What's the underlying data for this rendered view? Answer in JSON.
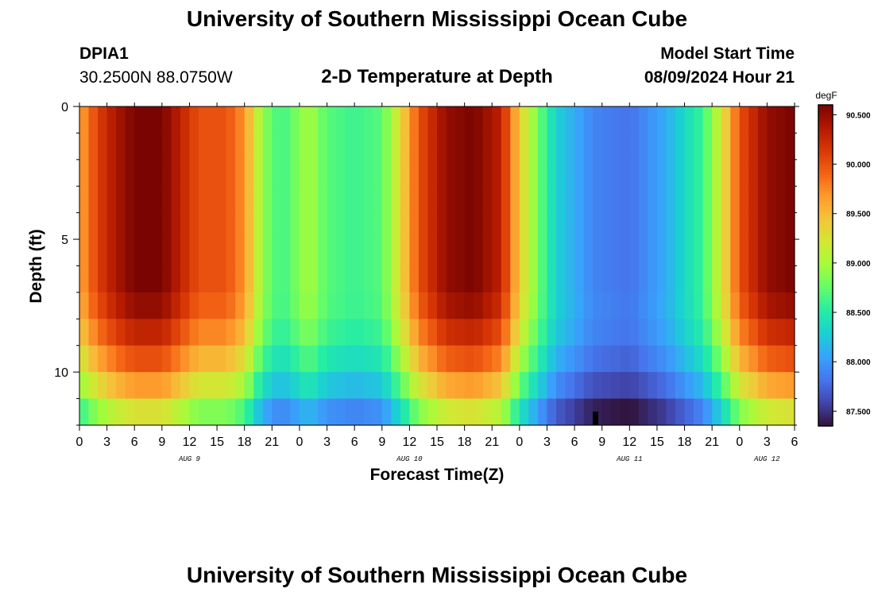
{
  "header": {
    "title": "University of Southern Mississippi Ocean Cube",
    "station_id": "DPIA1",
    "station_coords": "30.2500N  88.0750W",
    "chart_title": "2-D Temperature at Depth",
    "model_start_label": "Model Start Time",
    "model_start_time": "08/09/2024 Hour 21"
  },
  "footer": {
    "title": "University of Southern Mississippi Ocean Cube"
  },
  "chart_data": {
    "type": "heatmap",
    "title": "2-D Temperature at Depth",
    "xlabel": "Forecast Time(Z)",
    "ylabel": "Depth (ft)",
    "x_tick_labels": [
      "0",
      "3",
      "6",
      "9",
      "12",
      "15",
      "18",
      "21",
      "0",
      "3",
      "6",
      "9",
      "12",
      "15",
      "18",
      "21",
      "0",
      "3",
      "6",
      "9",
      "12",
      "15",
      "18",
      "21",
      "0",
      "3",
      "6"
    ],
    "date_labels": [
      {
        "text": "AUG 9",
        "hour": 12
      },
      {
        "text": "AUG 10",
        "hour": 36
      },
      {
        "text": "AUG 11",
        "hour": 60
      },
      {
        "text": "AUG 12",
        "hour": 75
      }
    ],
    "y_ticks": [
      0,
      5,
      10
    ],
    "xlim": [
      0,
      78
    ],
    "ylim": [
      0,
      12
    ],
    "colorbar": {
      "unit": "degF",
      "ticks": [
        "90.500",
        "90.000",
        "89.500",
        "89.000",
        "88.500",
        "88.000",
        "87.500"
      ],
      "range": [
        87.35,
        90.6
      ],
      "colormap": [
        "#30123b",
        "#4145ab",
        "#4675ed",
        "#39a2fc",
        "#1bcfd4",
        "#24eca6",
        "#61fc6c",
        "#a4fc3b",
        "#d1e834",
        "#f3c63a",
        "#fe9b2d",
        "#f36315",
        "#d93806",
        "#b11901",
        "#7a0402"
      ]
    },
    "depth_levels_ft": [
      0.5,
      1.5,
      2.5,
      3.5,
      4.5,
      5.5,
      6.5,
      7.5,
      8.5,
      9.5,
      10.5,
      11.5
    ],
    "surface_temp_by_hour": [
      {
        "hour": 0,
        "temp": 89.6
      },
      {
        "hour": 2,
        "temp": 90.1
      },
      {
        "hour": 4,
        "temp": 90.4
      },
      {
        "hour": 6,
        "temp": 90.6
      },
      {
        "hour": 9,
        "temp": 90.6
      },
      {
        "hour": 11,
        "temp": 90.3
      },
      {
        "hour": 13,
        "temp": 90.0
      },
      {
        "hour": 16,
        "temp": 90.0
      },
      {
        "hour": 18,
        "temp": 89.7
      },
      {
        "hour": 20,
        "temp": 88.9
      },
      {
        "hour": 22,
        "temp": 88.6
      },
      {
        "hour": 25,
        "temp": 89.0
      },
      {
        "hour": 27,
        "temp": 88.7
      },
      {
        "hour": 30,
        "temp": 88.6
      },
      {
        "hour": 33,
        "temp": 88.7
      },
      {
        "hour": 35,
        "temp": 89.3
      },
      {
        "hour": 37,
        "temp": 90.0
      },
      {
        "hour": 40,
        "temp": 90.5
      },
      {
        "hour": 43,
        "temp": 90.6
      },
      {
        "hour": 46,
        "temp": 90.3
      },
      {
        "hour": 48,
        "temp": 89.4
      },
      {
        "hour": 50,
        "temp": 88.8
      },
      {
        "hour": 52,
        "temp": 88.3
      },
      {
        "hour": 56,
        "temp": 87.9
      },
      {
        "hour": 60,
        "temp": 87.8
      },
      {
        "hour": 64,
        "temp": 88.1
      },
      {
        "hour": 68,
        "temp": 88.6
      },
      {
        "hour": 70,
        "temp": 89.2
      },
      {
        "hour": 72,
        "temp": 90.0
      },
      {
        "hour": 75,
        "temp": 90.5
      },
      {
        "hour": 78,
        "temp": 90.6
      }
    ],
    "grid": false
  }
}
